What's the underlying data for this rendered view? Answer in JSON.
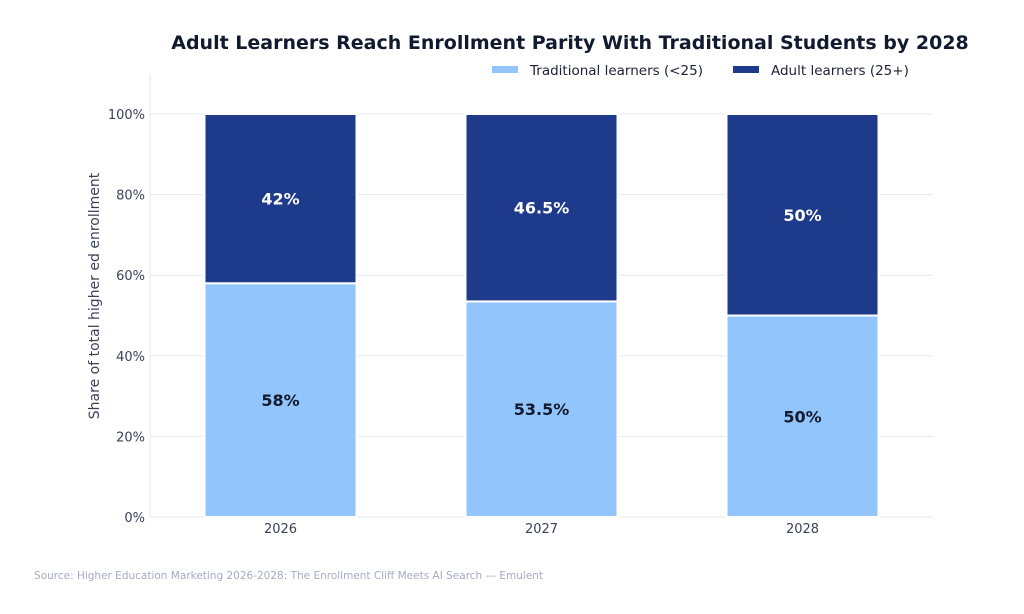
{
  "chart_data": {
    "type": "bar",
    "stacked": true,
    "title": "Adult Learners Reach Enrollment Parity With Traditional Students by 2028",
    "xlabel": "",
    "ylabel": "Share of total higher ed enrollment",
    "categories": [
      "2026",
      "2027",
      "2028"
    ],
    "series": [
      {
        "name": "Traditional learners (<25)",
        "values": [
          58,
          53.5,
          50
        ],
        "labels": [
          "58%",
          "53.5%",
          "50%"
        ],
        "color": "#93c5fd",
        "label_color": "#111a2e"
      },
      {
        "name": "Adult learners (25+)",
        "values": [
          42,
          46.5,
          50
        ],
        "labels": [
          "42%",
          "46.5%",
          "50%"
        ],
        "color": "#1e3a8a",
        "label_color": "#ffffff"
      }
    ],
    "ylim": [
      0,
      110
    ],
    "yticks": [
      0,
      20,
      40,
      60,
      80,
      100
    ],
    "ytick_labels": [
      "0%",
      "20%",
      "40%",
      "60%",
      "80%",
      "100%"
    ],
    "grid": "horizontal",
    "legend_position": "top-right"
  },
  "source": "Source: Higher Education Marketing 2026-2028: The Enrollment Cliff Meets AI Search — Emulent"
}
